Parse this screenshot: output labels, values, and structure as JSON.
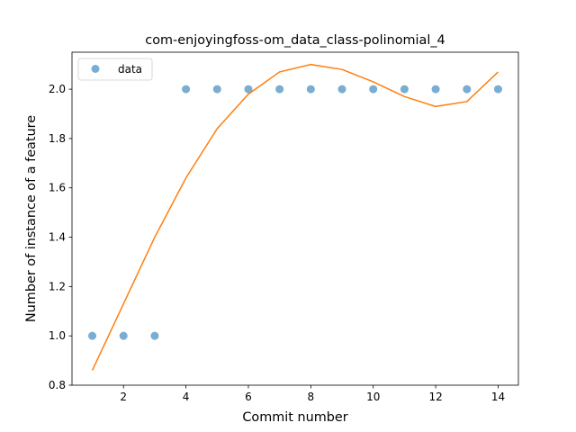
{
  "chart_data": {
    "type": "scatter",
    "title": "com-enjoyingfoss-om_data_class-polinomial_4",
    "xlabel": "Commit number",
    "ylabel": "Number of instance of a feature",
    "xlim": [
      0.35,
      14.65
    ],
    "ylim": [
      0.8,
      2.15
    ],
    "xticks": [
      2,
      4,
      6,
      8,
      10,
      12,
      14
    ],
    "yticks": [
      0.8,
      1.0,
      1.2,
      1.4,
      1.6,
      1.8,
      2.0
    ],
    "ytick_labels": [
      "0.8",
      "1.0",
      "1.2",
      "1.4",
      "1.6",
      "1.8",
      "2.0"
    ],
    "legend": {
      "position": "top-left",
      "entries": [
        "data"
      ]
    },
    "grid": false,
    "series": [
      {
        "name": "data",
        "kind": "scatter",
        "color": "#1f77b4",
        "x": [
          1,
          2,
          3,
          4,
          5,
          6,
          7,
          8,
          9,
          10,
          11,
          12,
          13,
          14
        ],
        "y": [
          1,
          1,
          1,
          2,
          2,
          2,
          2,
          2,
          2,
          2,
          2,
          2,
          2,
          2
        ]
      },
      {
        "kind": "line",
        "color": "#ff7f0e",
        "x": [
          1,
          2,
          3,
          4,
          5,
          6,
          7,
          8,
          9,
          10,
          11,
          12,
          13,
          14
        ],
        "y": [
          0.86,
          1.13,
          1.4,
          1.64,
          1.84,
          1.98,
          2.07,
          2.1,
          2.08,
          2.03,
          1.97,
          1.93,
          1.95,
          2.07
        ]
      }
    ]
  }
}
